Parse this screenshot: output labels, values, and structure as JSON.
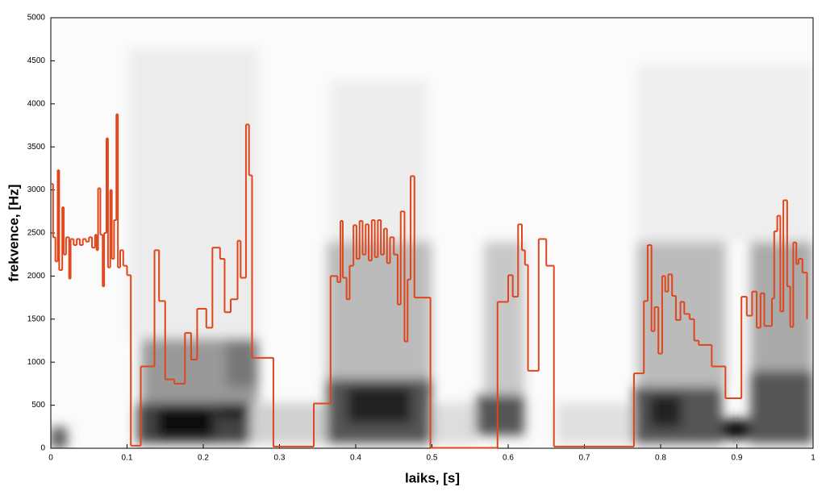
{
  "chart_data": {
    "type": "line",
    "step": "post",
    "xlabel": "laiks, [s]",
    "ylabel": "frekvence, [Hz]",
    "xlim": [
      0,
      1
    ],
    "ylim": [
      0,
      5000
    ],
    "xticks": [
      0,
      0.1,
      0.2,
      0.3,
      0.4,
      0.5,
      0.6,
      0.7,
      0.8,
      0.9,
      1
    ],
    "yticks": [
      0,
      500,
      1000,
      1500,
      2000,
      2500,
      3000,
      3500,
      4000,
      4500,
      5000
    ],
    "series": [
      {
        "color": "#e0451b",
        "x": [
          0.0,
          0.003,
          0.006,
          0.009,
          0.011,
          0.015,
          0.017,
          0.02,
          0.024,
          0.026,
          0.03,
          0.034,
          0.038,
          0.042,
          0.046,
          0.05,
          0.054,
          0.058,
          0.06,
          0.062,
          0.065,
          0.068,
          0.07,
          0.073,
          0.075,
          0.078,
          0.08,
          0.083,
          0.086,
          0.088,
          0.091,
          0.095,
          0.1,
          0.105,
          0.118,
          0.136,
          0.142,
          0.15,
          0.162,
          0.176,
          0.184,
          0.192,
          0.204,
          0.212,
          0.222,
          0.228,
          0.236,
          0.245,
          0.249,
          0.256,
          0.26,
          0.264,
          0.292,
          0.345,
          0.367,
          0.376,
          0.38,
          0.383,
          0.388,
          0.392,
          0.397,
          0.401,
          0.405,
          0.409,
          0.413,
          0.417,
          0.421,
          0.425,
          0.429,
          0.433,
          0.437,
          0.441,
          0.445,
          0.45,
          0.455,
          0.459,
          0.464,
          0.468,
          0.472,
          0.477,
          0.498,
          0.586,
          0.6,
          0.606,
          0.613,
          0.618,
          0.622,
          0.626,
          0.64,
          0.65,
          0.66,
          0.765,
          0.778,
          0.783,
          0.788,
          0.792,
          0.797,
          0.802,
          0.806,
          0.81,
          0.815,
          0.82,
          0.826,
          0.831,
          0.838,
          0.844,
          0.85,
          0.867,
          0.885,
          0.906,
          0.913,
          0.92,
          0.926,
          0.931,
          0.936,
          0.946,
          0.949,
          0.953,
          0.957,
          0.961,
          0.966,
          0.97,
          0.974,
          0.978,
          0.981,
          0.986,
          0.992
        ],
        "values": [
          3070,
          2450,
          2170,
          3230,
          2070,
          2800,
          2250,
          2450,
          1970,
          2430,
          2360,
          2430,
          2360,
          2430,
          2400,
          2450,
          2330,
          2480,
          2300,
          3020,
          2480,
          1880,
          2500,
          3600,
          2100,
          3000,
          2200,
          2650,
          3880,
          2100,
          2300,
          2120,
          2010,
          30,
          950,
          2300,
          1710,
          800,
          750,
          1340,
          1030,
          1620,
          1400,
          2330,
          2200,
          1580,
          1730,
          2410,
          1980,
          3760,
          3170,
          1050,
          20,
          520,
          2000,
          1930,
          2640,
          1980,
          1730,
          2120,
          2590,
          2200,
          2640,
          2250,
          2600,
          2180,
          2650,
          2220,
          2650,
          2250,
          2550,
          2150,
          2450,
          2250,
          1670,
          2750,
          1240,
          1960,
          3160,
          1750,
          5,
          1700,
          2010,
          1760,
          2600,
          2300,
          2130,
          900,
          2430,
          2120,
          20,
          870,
          1710,
          2360,
          1360,
          1640,
          1100,
          2000,
          1820,
          2020,
          1770,
          1490,
          1700,
          1560,
          1500,
          1250,
          1200,
          950,
          580,
          1760,
          1540,
          1820,
          1400,
          1800,
          1420,
          1740,
          2520,
          2700,
          1590,
          2880,
          1880,
          1410,
          2390,
          2140,
          2200,
          2040,
          1500
        ]
      }
    ]
  }
}
